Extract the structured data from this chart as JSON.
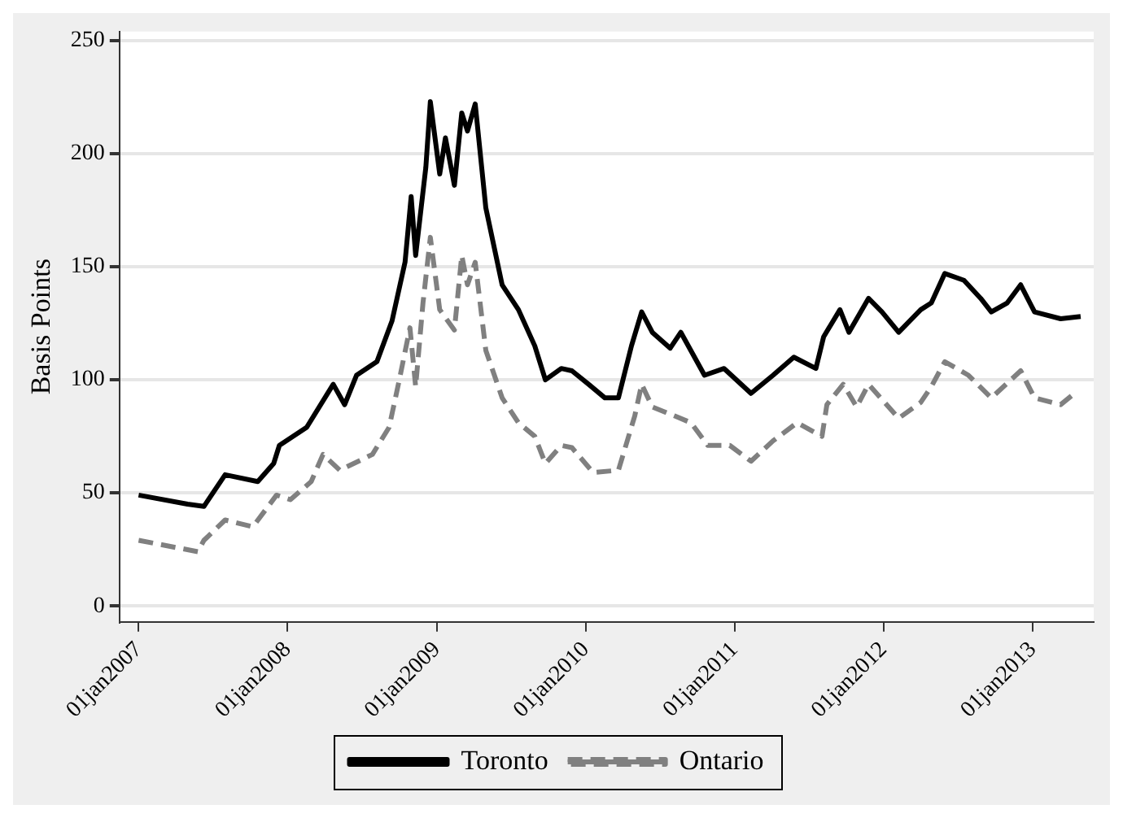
{
  "chart_data": {
    "type": "line",
    "ylabel": "Basis Points",
    "xlim": [
      "2006-11-15",
      "2013-05-30"
    ],
    "xticks": [
      {
        "value": "2007-01-01",
        "label": "01jan2007"
      },
      {
        "value": "2008-01-01",
        "label": "01jan2008"
      },
      {
        "value": "2009-01-01",
        "label": "01jan2009"
      },
      {
        "value": "2010-01-01",
        "label": "01jan2010"
      },
      {
        "value": "2011-01-01",
        "label": "01jan2011"
      },
      {
        "value": "2012-01-01",
        "label": "01jan2012"
      },
      {
        "value": "2013-01-01",
        "label": "01jan2013"
      }
    ],
    "ylim": [
      -7,
      254
    ],
    "yticks": [
      0,
      50,
      100,
      150,
      200,
      250
    ],
    "grid": "y",
    "legend": "bottom",
    "series": [
      {
        "name": "Toronto",
        "color": "#000000",
        "line_style": "solid",
        "x": [
          "2007-01-01",
          "2007-05-01",
          "2007-06-10",
          "2007-08-01",
          "2007-10-20",
          "2007-11-28",
          "2007-12-12",
          "2008-02-17",
          "2008-04-22",
          "2008-05-20",
          "2008-06-18",
          "2008-08-07",
          "2008-09-13",
          "2008-10-15",
          "2008-10-30",
          "2008-11-10",
          "2008-12-05",
          "2008-12-16",
          "2009-01-08",
          "2009-01-22",
          "2009-02-13",
          "2009-03-03",
          "2009-03-17",
          "2009-04-05",
          "2009-05-01",
          "2009-06-10",
          "2009-07-20",
          "2009-08-29",
          "2009-09-24",
          "2009-11-02",
          "2009-11-28",
          "2010-01-08",
          "2010-02-17",
          "2010-03-22",
          "2010-04-23",
          "2010-05-18",
          "2010-06-13",
          "2010-07-27",
          "2010-08-22",
          "2010-10-19",
          "2010-12-06",
          "2011-02-10",
          "2011-04-05",
          "2011-05-26",
          "2011-07-19",
          "2011-08-07",
          "2011-09-16",
          "2011-10-08",
          "2011-11-25",
          "2011-12-28",
          "2012-02-07",
          "2012-04-01",
          "2012-04-27",
          "2012-05-30",
          "2012-07-16",
          "2012-08-26",
          "2012-09-21",
          "2012-10-30",
          "2012-12-02",
          "2013-01-05",
          "2013-03-10",
          "2013-04-28"
        ],
        "values": [
          49,
          45,
          44,
          58,
          55,
          63,
          71,
          79,
          98,
          89,
          102,
          108,
          126,
          152,
          181,
          155,
          194,
          223,
          191,
          207,
          186,
          218,
          210,
          222,
          176,
          142,
          131,
          115,
          100,
          105,
          104,
          98,
          92,
          92,
          115,
          130,
          121,
          114,
          121,
          102,
          105,
          94,
          102,
          110,
          105,
          119,
          131,
          121,
          136,
          130,
          121,
          131,
          134,
          147,
          144,
          136,
          130,
          134,
          142,
          130,
          127,
          128
        ]
      },
      {
        "name": "Ontario",
        "color": "#808080",
        "line_style": "dashed",
        "x": [
          "2007-01-01",
          "2007-05-26",
          "2007-06-10",
          "2007-08-01",
          "2007-10-08",
          "2007-12-05",
          "2008-01-08",
          "2008-02-28",
          "2008-03-28",
          "2008-05-08",
          "2008-07-27",
          "2008-09-06",
          "2008-10-01",
          "2008-10-27",
          "2008-11-10",
          "2008-11-28",
          "2008-12-16",
          "2009-01-08",
          "2009-02-13",
          "2009-03-03",
          "2009-03-17",
          "2009-04-05",
          "2009-05-01",
          "2009-06-10",
          "2009-07-20",
          "2009-08-29",
          "2009-09-24",
          "2009-11-02",
          "2009-11-28",
          "2010-01-19",
          "2010-03-22",
          "2010-05-01",
          "2010-05-18",
          "2010-06-13",
          "2010-08-07",
          "2010-09-16",
          "2010-10-27",
          "2010-12-20",
          "2011-02-10",
          "2011-04-05",
          "2011-06-03",
          "2011-08-03",
          "2011-08-15",
          "2011-09-24",
          "2011-10-27",
          "2011-11-25",
          "2012-02-07",
          "2012-04-01",
          "2012-04-27",
          "2012-05-30",
          "2012-07-27",
          "2012-09-21",
          "2012-12-02",
          "2013-01-05",
          "2013-03-10",
          "2013-04-13"
        ],
        "values": [
          29,
          24,
          29,
          38,
          35,
          49,
          47,
          55,
          67,
          60,
          67,
          79,
          100,
          123,
          97,
          134,
          163,
          131,
          122,
          155,
          142,
          152,
          113,
          92,
          81,
          75,
          63,
          71,
          70,
          59,
          60,
          84,
          98,
          88,
          84,
          81,
          71,
          71,
          64,
          73,
          81,
          75,
          89,
          98,
          88,
          98,
          83,
          90,
          97,
          108,
          102,
          92,
          104,
          92,
          89,
          94
        ]
      }
    ]
  }
}
